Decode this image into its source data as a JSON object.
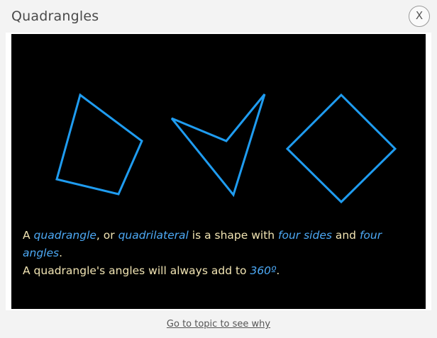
{
  "dialog": {
    "title": "Quadrangles",
    "close_label": "X"
  },
  "description": {
    "line1": {
      "p1": "A ",
      "h1": "quadrangle",
      "p2": ", or ",
      "h2": "quadrilateral",
      "p3": " is a shape with ",
      "h3": "four sides",
      "p4": " and ",
      "h4": "four angles",
      "p5": "."
    },
    "line2": {
      "p1": "A quadrangle's angles will always add to ",
      "h1": "360º",
      "p2": "."
    }
  },
  "footer": {
    "link_label": "Go to topic to see why"
  },
  "colors": {
    "shape_stroke": "#1f9cf0",
    "highlight_text": "#4da9f5",
    "body_text": "#f1e4b3",
    "panel_background": "#000000"
  },
  "shapes": [
    "irregular-quadrilateral",
    "concave-quadrilateral",
    "square-rotated"
  ]
}
